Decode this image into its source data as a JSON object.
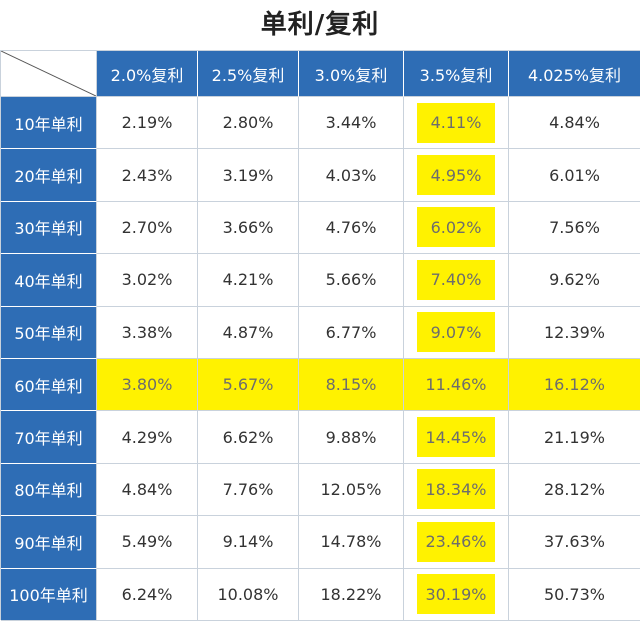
{
  "chart_data": {
    "type": "table",
    "title": "单利/复利",
    "columns": [
      "2.0%复利",
      "2.5%复利",
      "3.0%复利",
      "3.5%复利",
      "4.025%复利"
    ],
    "rows": [
      {
        "label": "10年单利",
        "values": [
          "2.19%",
          "2.80%",
          "3.44%",
          "4.11%",
          "4.84%"
        ]
      },
      {
        "label": "20年单利",
        "values": [
          "2.43%",
          "3.19%",
          "4.03%",
          "4.95%",
          "6.01%"
        ]
      },
      {
        "label": "30年单利",
        "values": [
          "2.70%",
          "3.66%",
          "4.76%",
          "6.02%",
          "7.56%"
        ]
      },
      {
        "label": "40年单利",
        "values": [
          "3.02%",
          "4.21%",
          "5.66%",
          "7.40%",
          "9.62%"
        ]
      },
      {
        "label": "50年单利",
        "values": [
          "3.38%",
          "4.87%",
          "6.77%",
          "9.07%",
          "12.39%"
        ]
      },
      {
        "label": "60年单利",
        "values": [
          "3.80%",
          "5.67%",
          "8.15%",
          "11.46%",
          "16.12%"
        ]
      },
      {
        "label": "70年单利",
        "values": [
          "4.29%",
          "6.62%",
          "9.88%",
          "14.45%",
          "21.19%"
        ]
      },
      {
        "label": "80年单利",
        "values": [
          "4.84%",
          "7.76%",
          "12.05%",
          "18.34%",
          "28.12%"
        ]
      },
      {
        "label": "90年单利",
        "values": [
          "5.49%",
          "9.14%",
          "14.78%",
          "23.46%",
          "37.63%"
        ]
      },
      {
        "label": "100年单利",
        "values": [
          "6.24%",
          "10.08%",
          "18.22%",
          "30.19%",
          "50.73%"
        ]
      }
    ],
    "highlight_column": "3.5%复利",
    "highlight_row": "60年单利"
  },
  "colors": {
    "header_bg": "#2e6db5",
    "header_text": "#ffffff",
    "highlight": "#fff200",
    "grid_line": "#c9d2dc"
  }
}
